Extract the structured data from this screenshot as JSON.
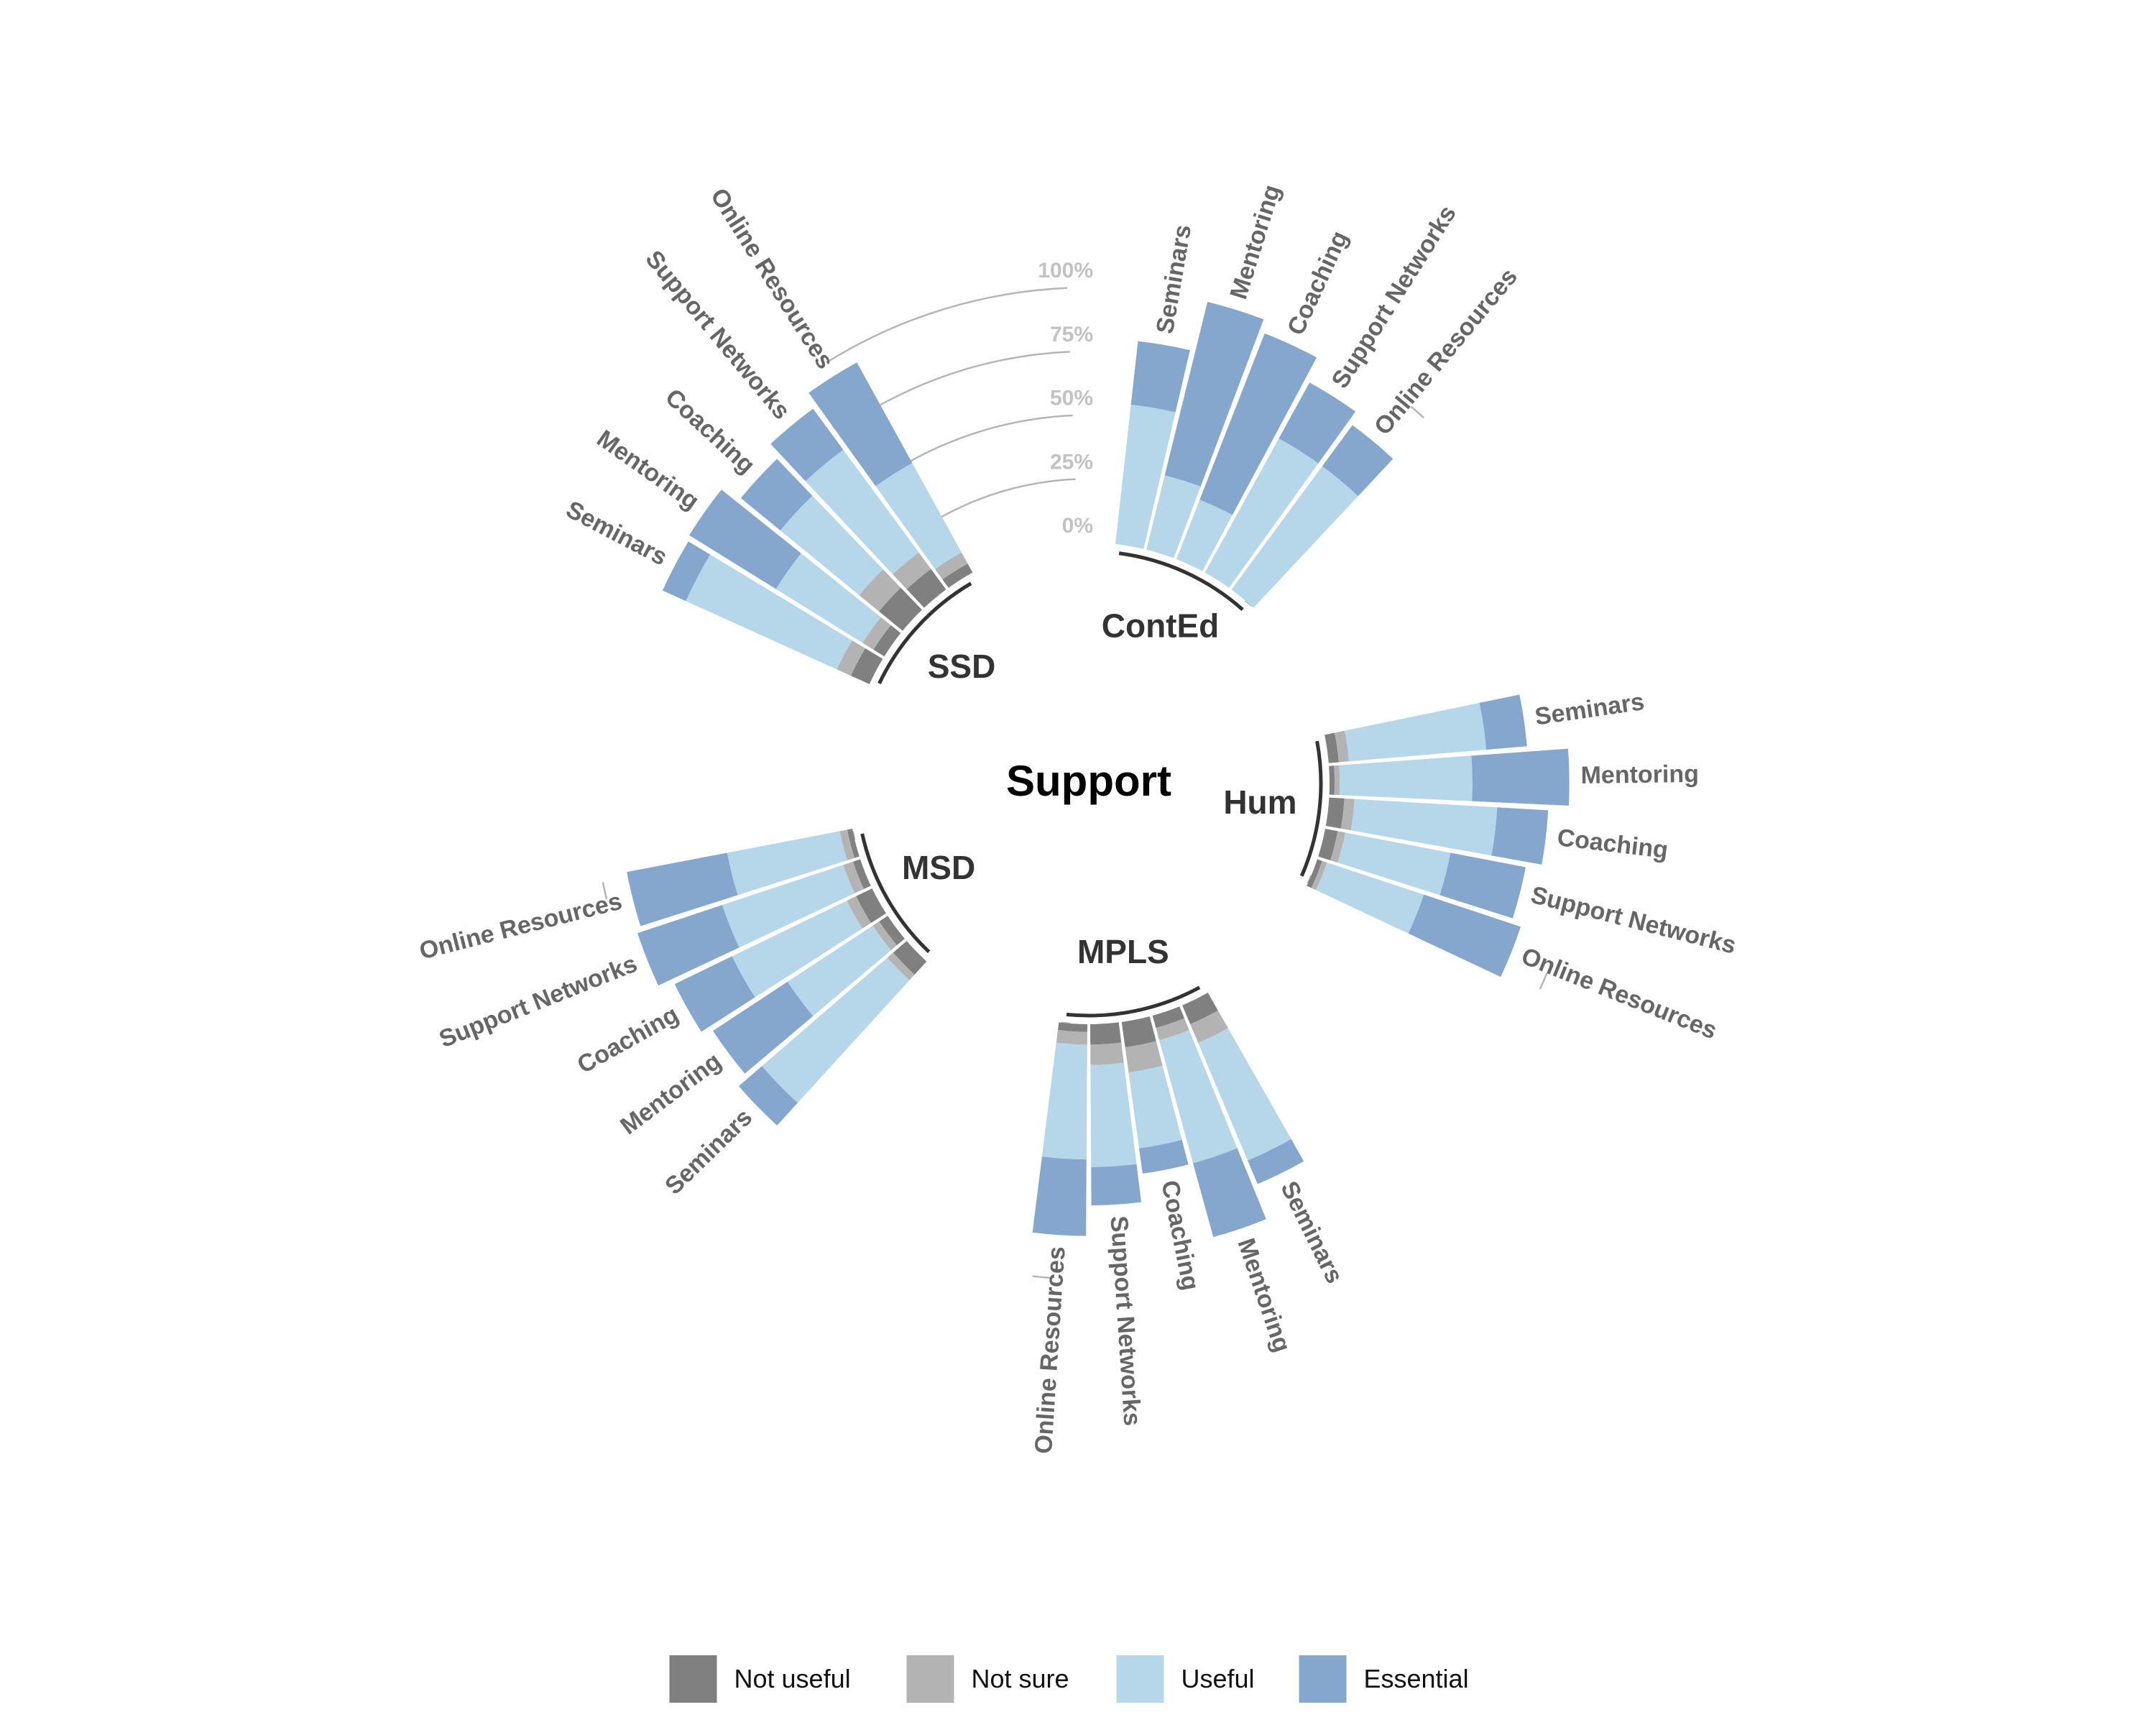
{
  "chart_data": {
    "type": "circular-stacked-bar",
    "title": "Support",
    "scale_labels": [
      "0%",
      "25%",
      "50%",
      "75%",
      "100%"
    ],
    "segments": [
      "Not useful",
      "Not sure",
      "Useful",
      "Essential"
    ],
    "colors": {
      "Not useful": "#808080",
      "Not sure": "#b3b3b3",
      "Useful": "#b6d7ea",
      "Essential": "#85a7ce",
      "group_arc": "#333333",
      "grid": "#b5b5b5"
    },
    "legend": {
      "position": "bottom",
      "items": [
        {
          "label": "Not useful",
          "color": "#808080"
        },
        {
          "label": "Not sure",
          "color": "#b3b3b3"
        },
        {
          "label": "Useful",
          "color": "#b6d7ea"
        },
        {
          "label": "Essential",
          "color": "#85a7ce"
        }
      ]
    },
    "groups": [
      {
        "name": "ContEd",
        "items": [
          {
            "label": "Seminars",
            "values": [
              0,
              0,
              55,
              25
            ]
          },
          {
            "label": "Mentoring",
            "values": [
              0,
              0,
              30,
              70
            ]
          },
          {
            "label": "Coaching",
            "values": [
              0,
              0,
              25,
              70
            ]
          },
          {
            "label": "Support Networks",
            "values": [
              0,
              0,
              60,
              25
            ]
          },
          {
            "label": "Online Resources",
            "values": [
              0,
              0,
              60,
              20
            ]
          }
        ]
      },
      {
        "name": "Hum",
        "items": [
          {
            "label": "Seminars",
            "values": [
              4,
              4,
              54,
              16
            ]
          },
          {
            "label": "Mentoring",
            "values": [
              2,
              2,
              52,
              38
            ]
          },
          {
            "label": "Coaching",
            "values": [
              6,
              4,
              56,
              20
            ]
          },
          {
            "label": "Support Networks",
            "values": [
              5,
              3,
              42,
              30
            ]
          },
          {
            "label": "Online Resources",
            "values": [
              2,
              2,
              40,
              40
            ]
          }
        ]
      },
      {
        "name": "MPLS",
        "items": [
          {
            "label": "Seminars",
            "values": [
              8,
              8,
              50,
              10
            ]
          },
          {
            "label": "Mentoring",
            "values": [
              5,
              5,
              50,
              30
            ]
          },
          {
            "label": "Coaching",
            "values": [
              10,
              10,
              30,
              10
            ]
          },
          {
            "label": "Support Networks",
            "values": [
              8,
              8,
              40,
              15
            ]
          },
          {
            "label": "Online Resources",
            "values": [
              3,
              5,
              45,
              30
            ]
          }
        ]
      },
      {
        "name": "MSD",
        "items": [
          {
            "label": "Seminars",
            "values": [
              7,
              3,
              65,
              12
            ]
          },
          {
            "label": "Mentoring",
            "values": [
              4,
              3,
              40,
              35
            ]
          },
          {
            "label": "Coaching",
            "values": [
              7,
              4,
              50,
              25
            ]
          },
          {
            "label": "Support Networks",
            "values": [
              3,
              4,
              50,
              35
            ]
          },
          {
            "label": "Online Resources",
            "values": [
              2,
              3,
              45,
              40
            ]
          }
        ]
      },
      {
        "name": "SSD",
        "items": [
          {
            "label": "Seminars",
            "values": [
              8,
              6,
              65,
              10
            ]
          },
          {
            "label": "Mentoring",
            "values": [
              5,
              5,
              40,
              40
            ]
          },
          {
            "label": "Coaching",
            "values": [
              12,
              10,
              40,
              20
            ]
          },
          {
            "label": "Support Networks",
            "values": [
              10,
              8,
              50,
              20
            ]
          },
          {
            "label": "Online Resources",
            "values": [
              4,
              5,
              40,
              45
            ]
          }
        ]
      }
    ]
  }
}
